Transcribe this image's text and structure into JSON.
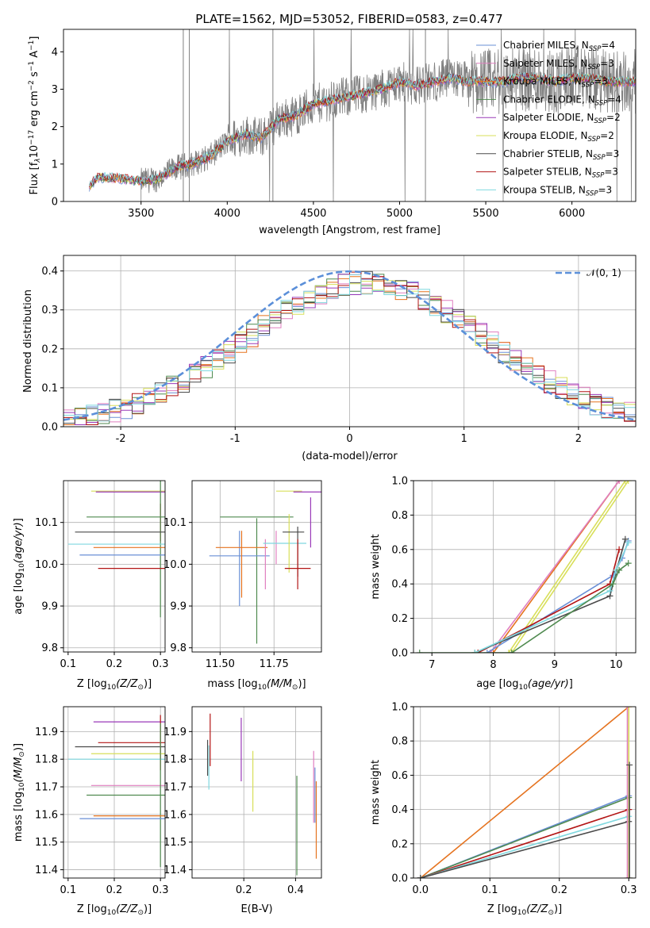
{
  "title": "PLATE=1562, MJD=53052, FIBERID=0583, z=0.477",
  "colors": {
    "chabrier_miles": "#6a8fd6",
    "salpeter_miles": "#e07fc0",
    "kroupa_miles": "#e5731f",
    "chabrier_elodie": "#4f8a4f",
    "salpeter_elodie": "#9a3ab8",
    "kroupa_elodie": "#d8df5a",
    "chabrier_stelib": "#4a4a4a",
    "salpeter_stelib": "#b31515",
    "kroupa_stelib": "#7fd8df",
    "data_gray": "#808080",
    "normal_curve": "#5b8fd9",
    "grid": "#b0b0b0"
  },
  "chart_data": [
    {
      "id": "spectrum",
      "type": "line",
      "title": "PLATE=1562, MJD=53052, FIBERID=0583, z=0.477",
      "xlabel": "wavelength [Angstrom, rest frame]",
      "ylabel": "Flux [f",
      "xlim": [
        3050,
        6370
      ],
      "ylim": [
        0,
        4.6
      ],
      "xticks": [
        3500,
        4000,
        4500,
        5000,
        5500,
        6000
      ],
      "yticks": [
        0,
        1,
        2,
        3,
        4
      ],
      "legend_position": "top-right",
      "legend": [
        {
          "label": "Chabrier MILES, N",
          "sub": "SSP",
          "suffix": "=4",
          "color": "chabrier_miles"
        },
        {
          "label": "Salpeter MILES, N",
          "sub": "SSP",
          "suffix": "=3",
          "color": "salpeter_miles"
        },
        {
          "label": "Kroupa MILES, N",
          "sub": "SSP",
          "suffix": "=3",
          "color": "kroupa_miles"
        },
        {
          "label": "Chabrier ELODIE, N",
          "sub": "SSP",
          "suffix": "=4",
          "color": "chabrier_elodie"
        },
        {
          "label": "Salpeter ELODIE, N",
          "sub": "SSP",
          "suffix": "=2",
          "color": "salpeter_elodie"
        },
        {
          "label": "Kroupa ELODIE, N",
          "sub": "SSP",
          "suffix": "=2",
          "color": "kroupa_elodie"
        },
        {
          "label": "Chabrier STELIB, N",
          "sub": "SSP",
          "suffix": "=3",
          "color": "chabrier_stelib"
        },
        {
          "label": "Salpeter STELIB, N",
          "sub": "SSP",
          "suffix": "=3",
          "color": "salpeter_stelib"
        },
        {
          "label": "Kroupa STELIB, N",
          "sub": "SSP",
          "suffix": "=3",
          "color": "kroupa_stelib"
        }
      ],
      "continuum_knots": {
        "x": [
          3200,
          3250,
          3400,
          3500,
          3600,
          3700,
          3800,
          3900,
          4000,
          4100,
          4200,
          4300,
          4400,
          4500,
          4600,
          4700,
          4800,
          4900,
          5000,
          5100,
          5200,
          5300,
          5400,
          5500,
          5600,
          5700,
          5800,
          5900,
          6000,
          6100,
          6200
        ],
        "y": [
          0.4,
          0.65,
          0.6,
          0.55,
          0.6,
          0.9,
          1.0,
          1.2,
          1.6,
          1.8,
          1.7,
          2.2,
          2.3,
          2.6,
          2.7,
          2.8,
          2.9,
          3.0,
          3.2,
          3.1,
          3.2,
          3.3,
          3.2,
          3.2,
          3.2,
          3.3,
          3.3,
          3.2,
          3.3,
          3.3,
          3.2
        ]
      },
      "data_start": 3500
    },
    {
      "id": "residual_hist",
      "type": "step",
      "xlabel": "(data-model)/error",
      "ylabel": "Normed distribution",
      "xlim": [
        -2.5,
        2.5
      ],
      "ylim": [
        0,
        0.44
      ],
      "xticks": [
        -2,
        -1,
        0,
        1,
        2
      ],
      "yticks": [
        0,
        0.1,
        0.2,
        0.3,
        0.4
      ],
      "legend_position": "top-right",
      "normal_label": "𝒩(0, 1)",
      "bin_width": 0.1
    },
    {
      "id": "age_vs_Z",
      "type": "errorbar",
      "xlabel": "Z [log",
      "ylabel": "age  [log",
      "xlim": [
        0.09,
        0.31
      ],
      "ylim": [
        9.79,
        10.2
      ],
      "xticks": [
        0.1,
        0.2,
        0.3
      ],
      "yticks": [
        9.8,
        9.9,
        10.0,
        10.1
      ],
      "points": [
        {
          "c": "kroupa_elodie",
          "x": 0.3,
          "y": 10.175,
          "xerr": 0.15,
          "yerr": 0.0
        },
        {
          "c": "salpeter_elodie",
          "x": 0.3,
          "y": 10.173,
          "xerr": 0.14,
          "yerr": 0.0
        },
        {
          "c": "salpeter_stelib",
          "x": 0.3,
          "y": 10.1,
          "xerr": 0.0,
          "yerr": 0.045
        },
        {
          "c": "chabrier_elodie",
          "x": 0.3,
          "y": 10.113,
          "xerr": 0.16,
          "yerr": 0.24
        },
        {
          "c": "chabrier_stelib",
          "x": 0.3,
          "y": 10.077,
          "xerr": 0.185,
          "yerr": 0.0
        },
        {
          "c": "kroupa_stelib",
          "x": 0.3,
          "y": 10.048,
          "xerr": 0.2,
          "yerr": 0.0
        },
        {
          "c": "kroupa_miles",
          "x": 0.3,
          "y": 10.04,
          "xerr": 0.145,
          "yerr": 0.0
        },
        {
          "c": "chabrier_miles",
          "x": 0.3,
          "y": 10.022,
          "xerr": 0.175,
          "yerr": 0.0
        },
        {
          "c": "salpeter_stelib",
          "x": 0.3,
          "y": 9.99,
          "xerr": 0.135,
          "yerr": 0.0
        }
      ]
    },
    {
      "id": "age_vs_mass",
      "type": "errorbar",
      "xlabel": "mass [log",
      "ylabel": "",
      "xlim": [
        11.37,
        11.97
      ],
      "ylim": [
        9.79,
        10.2
      ],
      "xticks": [
        11.5,
        11.75
      ],
      "yticks": [
        9.8,
        9.9,
        10.0,
        10.1
      ],
      "points": [
        {
          "c": "chabrier_elodie",
          "x": 11.67,
          "y": 10.113,
          "xerr": 0.17,
          "yerr": 0.0
        },
        {
          "c": "chabrier_elodie",
          "x": 11.67,
          "y": 9.96,
          "xerr": 0.0,
          "yerr": 0.15
        },
        {
          "c": "chabrier_miles",
          "x": 11.59,
          "y": 10.02,
          "xerr": 0.14,
          "yerr": 0.0
        },
        {
          "c": "chabrier_miles",
          "x": 11.59,
          "y": 9.99,
          "xerr": 0.0,
          "yerr": 0.09
        },
        {
          "c": "kroupa_miles",
          "x": 11.6,
          "y": 10.04,
          "xerr": 0.12,
          "yerr": 0.0
        },
        {
          "c": "kroupa_miles",
          "x": 11.6,
          "y": 10.0,
          "xerr": 0.0,
          "yerr": 0.08
        },
        {
          "c": "salpeter_miles",
          "x": 11.71,
          "y": 10.0,
          "xerr": 0.0,
          "yerr": 0.06
        },
        {
          "c": "salpeter_miles",
          "x": 11.76,
          "y": 10.04,
          "xerr": 0.0,
          "yerr": 0.04
        },
        {
          "c": "kroupa_stelib",
          "x": 11.8,
          "y": 10.05,
          "xerr": 0.1,
          "yerr": 0.0
        },
        {
          "c": "kroupa_elodie",
          "x": 11.82,
          "y": 10.175,
          "xerr": 0.06,
          "yerr": 0.0
        },
        {
          "c": "kroupa_elodie",
          "x": 11.82,
          "y": 10.05,
          "xerr": 0.0,
          "yerr": 0.07
        },
        {
          "c": "salpeter_elodie",
          "x": 11.92,
          "y": 10.173,
          "xerr": 0.08,
          "yerr": 0.0
        },
        {
          "c": "salpeter_elodie",
          "x": 11.92,
          "y": 10.1,
          "xerr": 0.0,
          "yerr": 0.06
        },
        {
          "c": "chabrier_stelib",
          "x": 11.84,
          "y": 10.077,
          "xerr": 0.05,
          "yerr": 0.0
        },
        {
          "c": "chabrier_stelib",
          "x": 11.86,
          "y": 10.03,
          "xerr": 0.0,
          "yerr": 0.06
        },
        {
          "c": "salpeter_stelib",
          "x": 11.86,
          "y": 9.99,
          "xerr": 0.06,
          "yerr": 0.0
        },
        {
          "c": "salpeter_stelib",
          "x": 11.86,
          "y": 10.0,
          "xerr": 0.0,
          "yerr": 0.06
        }
      ]
    },
    {
      "id": "weight_vs_age",
      "type": "line",
      "xlabel": "age  [log",
      "ylabel": "mass weight",
      "xlim": [
        6.7,
        10.32
      ],
      "ylim": [
        0,
        1.0
      ],
      "xticks": [
        7,
        8,
        9,
        10
      ],
      "yticks": [
        0,
        0.2,
        0.4,
        0.6,
        0.8,
        1.0
      ],
      "series": [
        {
          "c": "kroupa_miles",
          "x": [
            8.0,
            10.05
          ],
          "y": [
            0.0,
            1.0
          ]
        },
        {
          "c": "salpeter_miles",
          "x": [
            7.95,
            10.05
          ],
          "y": [
            0.0,
            1.0
          ]
        },
        {
          "c": "kroupa_elodie",
          "x": [
            8.3,
            10.2
          ],
          "y": [
            0.0,
            1.0
          ]
        },
        {
          "c": "kroupa_elodie",
          "x": [
            8.25,
            10.15
          ],
          "y": [
            0.0,
            1.0
          ]
        },
        {
          "c": "chabrier_miles",
          "x": [
            7.9,
            9.95,
            10.1,
            10.2
          ],
          "y": [
            0.0,
            0.45,
            0.55,
            0.65
          ]
        },
        {
          "c": "salpeter_stelib",
          "x": [
            7.75,
            9.9,
            10.05
          ],
          "y": [
            0.0,
            0.4,
            0.6
          ]
        },
        {
          "c": "chabrier_stelib",
          "x": [
            7.7,
            9.9,
            10.0,
            10.15
          ],
          "y": [
            0.0,
            0.33,
            0.47,
            0.66
          ]
        },
        {
          "c": "kroupa_stelib",
          "x": [
            7.7,
            9.9,
            10.0,
            10.2
          ],
          "y": [
            0.0,
            0.36,
            0.48,
            0.64
          ]
        },
        {
          "c": "chabrier_elodie",
          "x": [
            6.8,
            8.3,
            9.95,
            10.05,
            10.2
          ],
          "y": [
            0.0,
            0.0,
            0.4,
            0.48,
            0.52
          ]
        }
      ]
    },
    {
      "id": "mass_vs_Z",
      "type": "errorbar",
      "xlabel": "Z [log",
      "ylabel": "mass [log",
      "xlim": [
        0.09,
        0.31
      ],
      "ylim": [
        11.37,
        11.99
      ],
      "xticks": [
        0.1,
        0.2,
        0.3
      ],
      "yticks": [
        11.4,
        11.5,
        11.6,
        11.7,
        11.8,
        11.9
      ],
      "points": [
        {
          "c": "salpeter_elodie",
          "x": 0.3,
          "y": 11.935,
          "xerr": 0.145,
          "yerr": 0.0
        },
        {
          "c": "salpeter_stelib",
          "x": 0.3,
          "y": 11.86,
          "xerr": 0.135,
          "yerr": 0.1
        },
        {
          "c": "chabrier_stelib",
          "x": 0.3,
          "y": 11.845,
          "xerr": 0.185,
          "yerr": 0.0
        },
        {
          "c": "kroupa_elodie",
          "x": 0.3,
          "y": 11.82,
          "xerr": 0.15,
          "yerr": 0.0
        },
        {
          "c": "kroupa_stelib",
          "x": 0.3,
          "y": 11.8,
          "xerr": 0.2,
          "yerr": 0.0
        },
        {
          "c": "salpeter_miles",
          "x": 0.3,
          "y": 11.705,
          "xerr": 0.15,
          "yerr": 0.0
        },
        {
          "c": "chabrier_elodie",
          "x": 0.3,
          "y": 11.67,
          "xerr": 0.16,
          "yerr": 0.26
        },
        {
          "c": "kroupa_miles",
          "x": 0.3,
          "y": 11.595,
          "xerr": 0.145,
          "yerr": 0.0
        },
        {
          "c": "chabrier_miles",
          "x": 0.3,
          "y": 11.585,
          "xerr": 0.175,
          "yerr": 0.0
        }
      ]
    },
    {
      "id": "mass_vs_ebv",
      "type": "errorbar",
      "xlabel": "E(B-V)",
      "ylabel": "",
      "xlim": [
        0.0,
        0.5
      ],
      "ylim": [
        11.37,
        11.99
      ],
      "xticks": [
        0.2,
        0.4
      ],
      "yticks": [
        11.4,
        11.5,
        11.6,
        11.7,
        11.8,
        11.9
      ],
      "points": [
        {
          "c": "salpeter_stelib",
          "x": 0.07,
          "y": 11.87,
          "xerr": 0.0,
          "yerr": 0.095
        },
        {
          "c": "chabrier_stelib",
          "x": 0.06,
          "y": 11.805,
          "xerr": 0.0,
          "yerr": 0.065
        },
        {
          "c": "kroupa_stelib",
          "x": 0.065,
          "y": 11.77,
          "xerr": 0.0,
          "yerr": 0.08
        },
        {
          "c": "salpeter_elodie",
          "x": 0.19,
          "y": 11.835,
          "xerr": 0.0,
          "yerr": 0.115
        },
        {
          "c": "kroupa_elodie",
          "x": 0.235,
          "y": 11.72,
          "xerr": 0.0,
          "yerr": 0.11
        },
        {
          "c": "chabrier_elodie",
          "x": 0.405,
          "y": 11.56,
          "xerr": 0.0,
          "yerr": 0.18
        },
        {
          "c": "salpeter_miles",
          "x": 0.47,
          "y": 11.7,
          "xerr": 0.0,
          "yerr": 0.13
        },
        {
          "c": "chabrier_miles",
          "x": 0.475,
          "y": 11.67,
          "xerr": 0.0,
          "yerr": 0.1
        },
        {
          "c": "kroupa_miles",
          "x": 0.48,
          "y": 11.58,
          "xerr": 0.0,
          "yerr": 0.14
        }
      ]
    },
    {
      "id": "weight_vs_Z",
      "type": "line",
      "xlabel": "Z [log",
      "ylabel": "mass weight",
      "xlim": [
        -0.01,
        0.31
      ],
      "ylim": [
        0,
        1.0
      ],
      "xticks": [
        0.0,
        0.1,
        0.2,
        0.3
      ],
      "yticks": [
        0,
        0.2,
        0.4,
        0.6,
        0.8,
        1.0
      ],
      "series": [
        {
          "c": "kroupa_miles",
          "x": [
            0.0,
            0.3
          ],
          "y": [
            0.0,
            1.0
          ]
        },
        {
          "c": "chabrier_miles",
          "x": [
            0.0,
            0.3
          ],
          "y": [
            0.0,
            0.48
          ]
        },
        {
          "c": "chabrier_elodie",
          "x": [
            0.0,
            0.3
          ],
          "y": [
            0.0,
            0.47
          ]
        },
        {
          "c": "salpeter_stelib",
          "x": [
            0.0,
            0.3
          ],
          "y": [
            0.0,
            0.4
          ]
        },
        {
          "c": "kroupa_stelib",
          "x": [
            0.0,
            0.3
          ],
          "y": [
            0.0,
            0.36
          ]
        },
        {
          "c": "chabrier_stelib",
          "x": [
            0.0,
            0.3
          ],
          "y": [
            0.0,
            0.33
          ]
        },
        {
          "c": "kroupa_elodie",
          "x": [
            0.3,
            0.3
          ],
          "y": [
            0.0,
            1.0
          ]
        },
        {
          "c": "salpeter_miles",
          "x": [
            0.298,
            0.298
          ],
          "y": [
            0.0,
            1.0
          ]
        },
        {
          "c": "chabrier_stelib",
          "x": [
            0.301,
            0.301
          ],
          "y": [
            0.0,
            0.66
          ]
        }
      ]
    }
  ]
}
